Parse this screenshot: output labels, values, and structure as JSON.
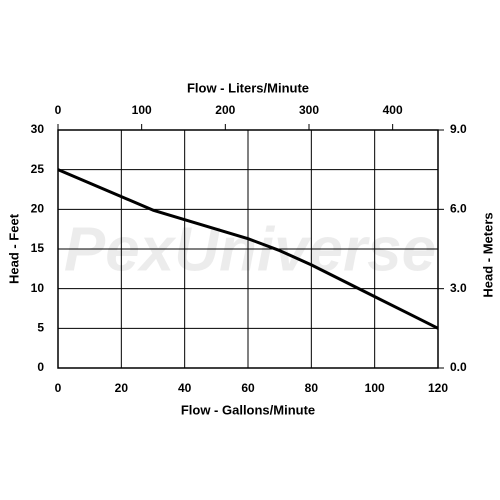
{
  "chart_data": {
    "type": "line",
    "title": "Flow - Liters/Minute",
    "xlabel": "Flow - Gallons/Minute",
    "ylabel": "Head - Feet",
    "y2label": "Head - Meters",
    "watermark": "PexUniverse",
    "x": [
      0,
      10,
      20,
      30,
      40,
      50,
      60,
      70,
      80,
      90,
      100,
      110,
      120
    ],
    "values": [
      25,
      23.3,
      21.6,
      19.9,
      18.7,
      17.5,
      16.3,
      14.8,
      13,
      11,
      9,
      7,
      5
    ],
    "color": "#000000",
    "xlim": [
      0,
      120
    ],
    "xticks": [
      0,
      20,
      40,
      60,
      80,
      100,
      120
    ],
    "x2lim": [
      0,
      454.2
    ],
    "x2ticks": [
      0,
      100,
      200,
      300,
      400
    ],
    "ylim": [
      0,
      30
    ],
    "yticks": [
      0,
      5,
      10,
      15,
      20,
      25,
      30
    ],
    "y2lim": [
      0,
      9.0
    ],
    "y2ticks": [
      {
        "value": 0,
        "label": "0.0"
      },
      {
        "value": 3,
        "label": "3.0"
      },
      {
        "value": 6,
        "label": "6.0"
      },
      {
        "value": 9,
        "label": "9.0"
      }
    ],
    "grid": true
  }
}
